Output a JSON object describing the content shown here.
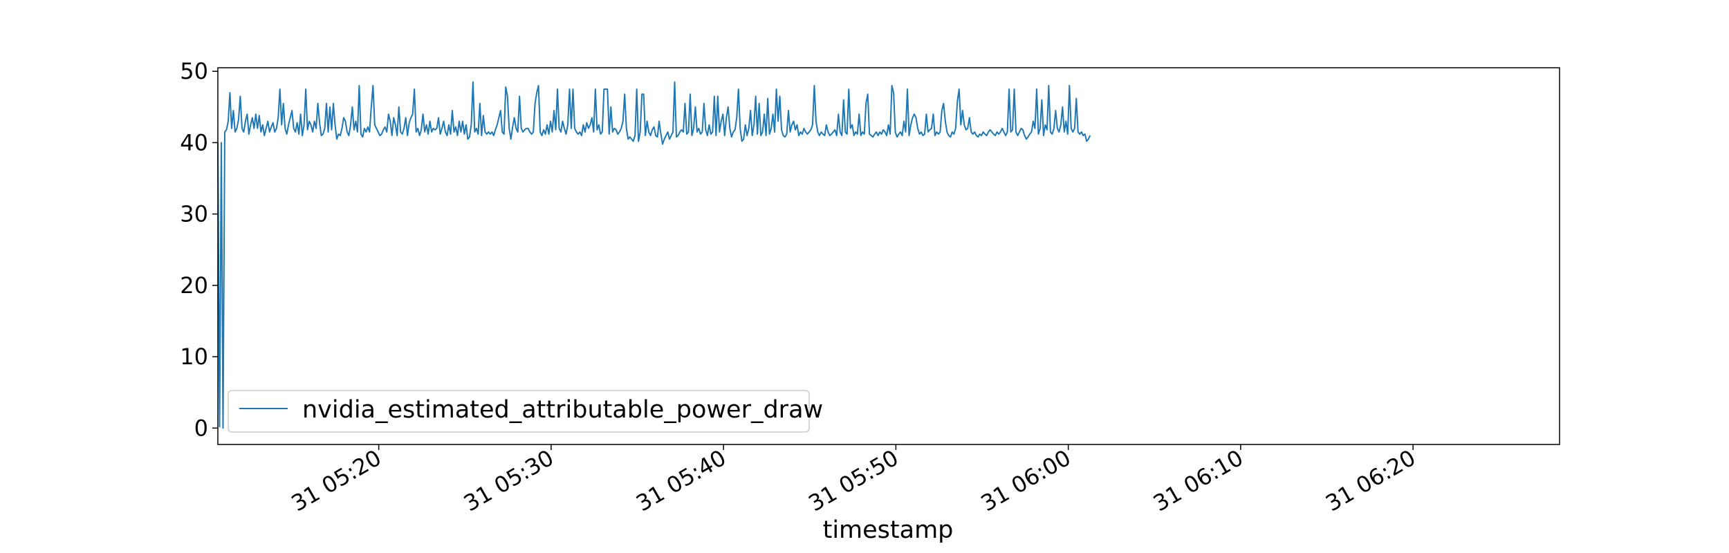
{
  "chart_data": {
    "type": "line",
    "title": "",
    "xlabel": "timestamp",
    "ylabel": "",
    "x_type": "datetime",
    "x_start": "05:10:40",
    "x_end": "06:28:30",
    "x_ticks": [
      {
        "time": "05:20",
        "label": "31 05:20"
      },
      {
        "time": "05:30",
        "label": "31 05:30"
      },
      {
        "time": "05:40",
        "label": "31 05:40"
      },
      {
        "time": "05:50",
        "label": "31 05:50"
      },
      {
        "time": "06:00",
        "label": "31 06:00"
      },
      {
        "time": "06:10",
        "label": "31 06:10"
      },
      {
        "time": "06:20",
        "label": "31 06:20"
      }
    ],
    "ylim": [
      -2.3,
      50.5
    ],
    "y_ticks": [
      0,
      10,
      20,
      30,
      40,
      50
    ],
    "grid": false,
    "legend": {
      "position": "lower-left"
    },
    "series": [
      {
        "name": "nvidia_estimated_attributable_power_draw",
        "color": "#1f77b4",
        "x_start": "05:10:40",
        "x_step_seconds": 6,
        "values": [
          40.0,
          0.2,
          40.0,
          0.0,
          41.5,
          41.8,
          43.0,
          47.0,
          42.0,
          44.5,
          41.5,
          42.0,
          43.2,
          46.5,
          42.0,
          41.5,
          43.0,
          44.0,
          41.2,
          42.5,
          43.5,
          42.0,
          44.0,
          42.0,
          43.8,
          41.5,
          42.5,
          41.0,
          42.0,
          43.0,
          41.5,
          42.2,
          42.8,
          41.5,
          42.0,
          43.5,
          47.5,
          42.5,
          45.5,
          42.0,
          41.2,
          42.5,
          43.5,
          44.5,
          42.0,
          41.5,
          42.8,
          41.2,
          44.0,
          41.0,
          42.5,
          47.5,
          41.8,
          43.0,
          42.5,
          41.5,
          43.0,
          42.0,
          45.5,
          42.8,
          41.0,
          41.2,
          42.0,
          45.5,
          41.5,
          45.0,
          41.8,
          45.5,
          42.5,
          40.5,
          41.2,
          41.0,
          42.0,
          43.5,
          43.0,
          41.5,
          41.0,
          42.5,
          45.0,
          41.8,
          43.0,
          41.5,
          48.0,
          41.2,
          40.8,
          42.0,
          41.5,
          42.2,
          41.5,
          45.0,
          48.0,
          42.5,
          42.0,
          41.5,
          41.0,
          41.2,
          41.8,
          42.2,
          41.5,
          44.0,
          43.0,
          41.0,
          43.5,
          42.5,
          41.0,
          45.0,
          41.5,
          41.2,
          42.0,
          43.5,
          41.0,
          42.8,
          43.5,
          44.0,
          47.5,
          41.5,
          42.0,
          41.0,
          41.8,
          44.0,
          41.5,
          42.5,
          41.2,
          43.0,
          41.5,
          42.0,
          41.8,
          42.0,
          43.5,
          41.2,
          42.0,
          43.0,
          41.5,
          41.0,
          42.5,
          41.2,
          44.5,
          41.5,
          42.2,
          41.0,
          43.0,
          41.5,
          43.0,
          41.2,
          42.5,
          40.5,
          40.8,
          42.5,
          48.5,
          41.5,
          42.0,
          41.2,
          45.5,
          41.0,
          43.8,
          41.5,
          41.2,
          41.5,
          41.2,
          41.5,
          41.0,
          41.8,
          42.5,
          43.5,
          44.5,
          41.5,
          41.2,
          47.8,
          46.5,
          42.0,
          40.5,
          42.2,
          43.5,
          42.0,
          41.5,
          46.5,
          42.0,
          41.5,
          41.8,
          42.0,
          42.0,
          41.5,
          41.2,
          41.5,
          45.5,
          47.0,
          48.0,
          41.5,
          41.0,
          41.8,
          41.2,
          42.5,
          41.2,
          43.0,
          41.5,
          44.5,
          41.8,
          47.5,
          42.0,
          41.5,
          43.0,
          42.0,
          41.2,
          42.5,
          47.5,
          42.0,
          47.5,
          42.0,
          41.5,
          41.2,
          41.5,
          41.0,
          42.5,
          41.5,
          42.8,
          42.0,
          42.5,
          43.5,
          41.5,
          47.5,
          41.8,
          42.5,
          41.2,
          41.5,
          47.5,
          47.5,
          47.5,
          41.2,
          45.0,
          41.5,
          42.0,
          41.8,
          41.2,
          41.5,
          42.0,
          43.0,
          46.8,
          42.0,
          40.5,
          40.8,
          40.5,
          40.2,
          41.0,
          47.5,
          40.2,
          41.5,
          46.8,
          46.8,
          41.0,
          43.0,
          41.5,
          41.0,
          41.8,
          42.2,
          41.0,
          40.8,
          43.0,
          41.2,
          39.8,
          40.5,
          41.0,
          41.5,
          40.5,
          41.0,
          41.5,
          48.5,
          40.8,
          41.0,
          41.5,
          41.8,
          41.5,
          45.5,
          41.2,
          41.5,
          46.8,
          41.0,
          42.0,
          45.0,
          41.5,
          42.0,
          41.2,
          41.5,
          45.5,
          41.8,
          41.0,
          42.5,
          41.2,
          41.5,
          46.5,
          41.0,
          46.5,
          41.5,
          43.0,
          44.0,
          41.0,
          43.5,
          45.0,
          42.0,
          40.8,
          41.5,
          41.8,
          43.5,
          47.5,
          42.0,
          40.2,
          40.5,
          42.5,
          41.0,
          42.0,
          44.5,
          41.0,
          42.5,
          46.5,
          41.2,
          45.5,
          41.0,
          41.5,
          44.0,
          41.0,
          46.2,
          41.2,
          42.0,
          44.0,
          41.5,
          47.5,
          43.0,
          46.5,
          41.8,
          41.0,
          40.8,
          41.2,
          44.5,
          41.5,
          42.5,
          43.0,
          41.8,
          42.5,
          41.0,
          41.5,
          41.2,
          42.0,
          41.5,
          41.2,
          41.5,
          41.8,
          42.5,
          48.0,
          43.0,
          41.5,
          41.0,
          41.5,
          41.2,
          41.0,
          42.5,
          41.5,
          41.0,
          41.2,
          41.5,
          41.8,
          41.0,
          44.0,
          41.5,
          41.0,
          46.0,
          41.5,
          41.2,
          47.5,
          42.0,
          42.5,
          41.0,
          41.5,
          41.2,
          44.0,
          41.0,
          41.5,
          41.2,
          45.5,
          46.8,
          41.2,
          41.0,
          40.8,
          41.2,
          41.5,
          41.0,
          41.5,
          41.2,
          41.8,
          41.5,
          41.0,
          42.5,
          41.2,
          48.0,
          47.0,
          41.5,
          40.8,
          41.2,
          41.5,
          41.0,
          43.0,
          41.5,
          47.5,
          41.0,
          42.5,
          43.5,
          44.0,
          43.5,
          42.0,
          41.2,
          41.5,
          41.0,
          41.2,
          44.0,
          41.5,
          41.8,
          42.0,
          44.0,
          41.0,
          41.5,
          41.2,
          41.5,
          44.5,
          45.5,
          43.0,
          41.5,
          41.0,
          40.8,
          41.5,
          41.2,
          42.0,
          45.8,
          47.5,
          42.5,
          44.5,
          42.5,
          41.8,
          42.0,
          43.5,
          41.5,
          41.2,
          41.5,
          41.0,
          40.8,
          41.2,
          41.0,
          41.5,
          41.2,
          41.0,
          41.5,
          41.8,
          41.5,
          41.2,
          41.0,
          41.5,
          41.2,
          41.5,
          42.0,
          41.5,
          41.0,
          41.5,
          47.5,
          41.5,
          41.8,
          47.5,
          41.5,
          41.0,
          41.5,
          42.0,
          41.8,
          41.0,
          40.5,
          40.8,
          41.2,
          41.5,
          43.0,
          42.0,
          47.5,
          41.2,
          42.0,
          46.0,
          41.0,
          42.5,
          41.8,
          48.0,
          41.5,
          41.2,
          42.0,
          44.5,
          42.0,
          41.5,
          42.5,
          45.0,
          41.5,
          43.0,
          41.2,
          48.0,
          42.0,
          41.5,
          42.0,
          46.2,
          41.5,
          41.2,
          41.5,
          41.0,
          41.2,
          40.2,
          40.5,
          41.0
        ]
      }
    ]
  }
}
